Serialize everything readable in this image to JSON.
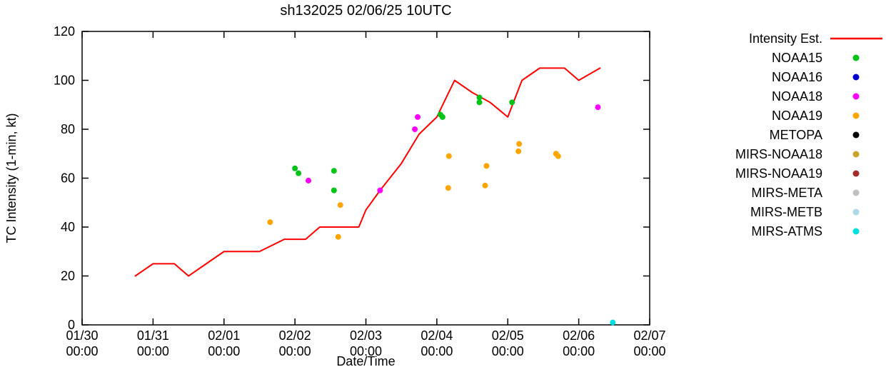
{
  "title": "sh132025 02/06/25 10UTC",
  "axes": {
    "ylabel": "TC Intensity (1-min, kt)",
    "xlabel": "Date/Time",
    "ylim": [
      0,
      120
    ],
    "y_ticks": [
      0,
      20,
      40,
      60,
      80,
      100,
      120
    ],
    "xlim_days": [
      0,
      8
    ],
    "x_ticks": [
      {
        "day": 0,
        "line1": "01/30",
        "line2": "00:00"
      },
      {
        "day": 1,
        "line1": "01/31",
        "line2": "00:00"
      },
      {
        "day": 2,
        "line1": "02/01",
        "line2": "00:00"
      },
      {
        "day": 3,
        "line1": "02/02",
        "line2": "00:00"
      },
      {
        "day": 4,
        "line1": "02/03",
        "line2": "00:00"
      },
      {
        "day": 5,
        "line1": "02/04",
        "line2": "00:00"
      },
      {
        "day": 6,
        "line1": "02/05",
        "line2": "00:00"
      },
      {
        "day": 7,
        "line1": "02/06",
        "line2": "00:00"
      },
      {
        "day": 8,
        "line1": "02/07",
        "line2": "00:00"
      }
    ]
  },
  "legend": [
    {
      "label": "Intensity Est.",
      "color": "#ff0000",
      "marker": "line"
    },
    {
      "label": "NOAA15",
      "color": "#00c316",
      "marker": "point"
    },
    {
      "label": "NOAA16",
      "color": "#0000cc",
      "marker": "point"
    },
    {
      "label": "NOAA18",
      "color": "#ff00ff",
      "marker": "point"
    },
    {
      "label": "NOAA19",
      "color": "#ffa500",
      "marker": "point"
    },
    {
      "label": "METOPA",
      "color": "#000000",
      "marker": "point"
    },
    {
      "label": "MIRS-NOAA18",
      "color": "#c9a227",
      "marker": "point"
    },
    {
      "label": "MIRS-NOAA19",
      "color": "#a52a2a",
      "marker": "point"
    },
    {
      "label": "MIRS-META",
      "color": "#c0c0c0",
      "marker": "point"
    },
    {
      "label": "MIRS-METB",
      "color": "#add8e6",
      "marker": "point"
    },
    {
      "label": "MIRS-ATMS",
      "color": "#00e0e0",
      "marker": "point"
    }
  ],
  "chart_data": {
    "type": "line",
    "x_unit": "days since 01/30 00:00 UTC",
    "title": "sh132025 02/06/25 10UTC",
    "xlabel": "Date/Time",
    "ylabel": "TC Intensity (1-min, kt)",
    "ylim": [
      0,
      120
    ],
    "intensity_line": {
      "name": "Intensity Est.",
      "color": "#ff0000",
      "points": [
        [
          0.75,
          20
        ],
        [
          1.0,
          25
        ],
        [
          1.3,
          25
        ],
        [
          1.5,
          20
        ],
        [
          1.75,
          25
        ],
        [
          2.0,
          30
        ],
        [
          2.5,
          30
        ],
        [
          2.85,
          35
        ],
        [
          3.15,
          35
        ],
        [
          3.35,
          40
        ],
        [
          3.9,
          40
        ],
        [
          4.0,
          47
        ],
        [
          4.2,
          55
        ],
        [
          4.5,
          66
        ],
        [
          4.75,
          78
        ],
        [
          5.0,
          85
        ],
        [
          5.25,
          100
        ],
        [
          5.5,
          95
        ],
        [
          5.75,
          91
        ],
        [
          6.0,
          85
        ],
        [
          6.2,
          100
        ],
        [
          6.45,
          105
        ],
        [
          6.8,
          105
        ],
        [
          7.0,
          100
        ],
        [
          7.3,
          105
        ]
      ]
    },
    "series": [
      {
        "name": "NOAA15",
        "color": "#00c316",
        "points": [
          [
            3.0,
            64
          ],
          [
            3.05,
            62
          ],
          [
            3.55,
            63
          ],
          [
            3.55,
            55
          ],
          [
            5.05,
            86
          ],
          [
            5.08,
            85
          ],
          [
            5.6,
            93
          ],
          [
            5.6,
            91
          ],
          [
            6.06,
            91
          ]
        ]
      },
      {
        "name": "NOAA16",
        "color": "#0000cc",
        "points": []
      },
      {
        "name": "NOAA18",
        "color": "#ff00ff",
        "points": [
          [
            3.19,
            59
          ],
          [
            4.2,
            55
          ],
          [
            4.73,
            85
          ],
          [
            4.69,
            80
          ],
          [
            7.27,
            89
          ]
        ]
      },
      {
        "name": "NOAA19",
        "color": "#ffa500",
        "points": [
          [
            2.65,
            42
          ],
          [
            3.64,
            49
          ],
          [
            3.61,
            36
          ],
          [
            5.17,
            69
          ],
          [
            5.16,
            56
          ],
          [
            5.7,
            65
          ],
          [
            5.68,
            57
          ],
          [
            6.16,
            74
          ],
          [
            6.15,
            71
          ],
          [
            6.68,
            70
          ],
          [
            6.71,
            69
          ]
        ]
      },
      {
        "name": "METOPA",
        "color": "#000000",
        "points": []
      },
      {
        "name": "MIRS-NOAA18",
        "color": "#c9a227",
        "points": []
      },
      {
        "name": "MIRS-NOAA19",
        "color": "#a52a2a",
        "points": []
      },
      {
        "name": "MIRS-META",
        "color": "#c0c0c0",
        "points": []
      },
      {
        "name": "MIRS-METB",
        "color": "#add8e6",
        "points": []
      },
      {
        "name": "MIRS-ATMS",
        "color": "#00e0e0",
        "points": [
          [
            7.48,
            1
          ]
        ]
      }
    ]
  }
}
